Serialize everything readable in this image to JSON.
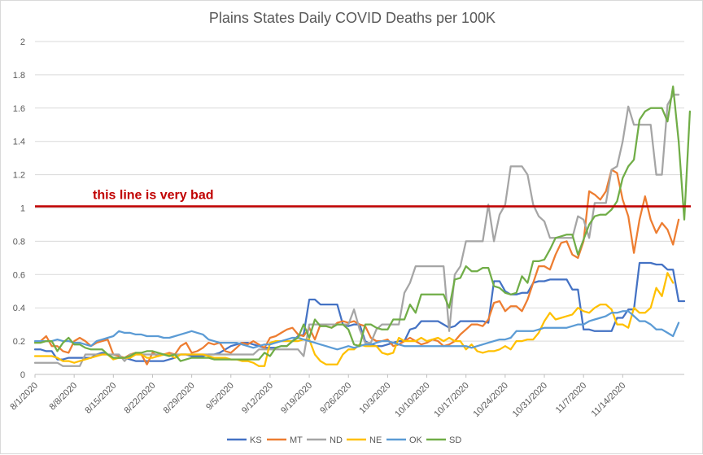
{
  "chart_data": {
    "type": "line",
    "title": "Plains States Daily COVID Deaths per 100K",
    "xlabel": "",
    "ylabel": "",
    "ylim": [
      0,
      2
    ],
    "yticks": [
      "0",
      "0.2",
      "0.4",
      "0.6",
      "0.8",
      "1",
      "1.2",
      "1.4",
      "1.6",
      "1.8",
      "2"
    ],
    "x_start_label": "8/1/2020",
    "xticks": [
      "8/1/2020",
      "8/8/2020",
      "8/15/2020",
      "8/22/2020",
      "8/29/2020",
      "9/5/2020",
      "9/12/2020",
      "9/19/2020",
      "9/26/2020",
      "10/3/2020",
      "10/10/2020",
      "10/17/2020",
      "10/24/2020",
      "10/31/2020",
      "11/7/2020",
      "11/14/2020"
    ],
    "grid": true,
    "legend_position": "bottom",
    "reference_line": {
      "value": 1.01,
      "label": "this line is very bad",
      "color": "#c00000"
    },
    "series": [
      {
        "name": "KS",
        "color": "#4472c4",
        "values": [
          0.15,
          0.15,
          0.14,
          0.14,
          0.09,
          0.09,
          0.1,
          0.1,
          0.1,
          0.1,
          0.1,
          0.12,
          0.13,
          0.12,
          0.1,
          0.1,
          0.1,
          0.09,
          0.08,
          0.08,
          0.08,
          0.08,
          0.08,
          0.08,
          0.09,
          0.1,
          0.12,
          0.12,
          0.11,
          0.11,
          0.11,
          0.12,
          0.12,
          0.13,
          0.15,
          0.17,
          0.18,
          0.19,
          0.19,
          0.18,
          0.17,
          0.16,
          0.16,
          0.16,
          0.17,
          0.17,
          0.2,
          0.23,
          0.24,
          0.45,
          0.45,
          0.42,
          0.42,
          0.42,
          0.42,
          0.3,
          0.29,
          0.3,
          0.3,
          0.2,
          0.18,
          0.17,
          0.17,
          0.18,
          0.19,
          0.2,
          0.2,
          0.27,
          0.28,
          0.32,
          0.32,
          0.32,
          0.32,
          0.3,
          0.28,
          0.29,
          0.32,
          0.32,
          0.32,
          0.32,
          0.32,
          0.31,
          0.56,
          0.56,
          0.5,
          0.48,
          0.48,
          0.49,
          0.49,
          0.55,
          0.56,
          0.56,
          0.57,
          0.57,
          0.57,
          0.57,
          0.51,
          0.51,
          0.27,
          0.27,
          0.26,
          0.26,
          0.26,
          0.26,
          0.34,
          0.34,
          0.39,
          0.39,
          0.67,
          0.67,
          0.67,
          0.66,
          0.66,
          0.63,
          0.63,
          0.44,
          0.44
        ]
      },
      {
        "name": "MT",
        "color": "#ed7d31",
        "values": [
          0.19,
          0.2,
          0.23,
          0.17,
          0.17,
          0.14,
          0.13,
          0.2,
          0.22,
          0.2,
          0.17,
          0.19,
          0.2,
          0.21,
          0.12,
          0.11,
          0.1,
          0.12,
          0.13,
          0.12,
          0.06,
          0.13,
          0.11,
          0.12,
          0.13,
          0.12,
          0.17,
          0.19,
          0.13,
          0.14,
          0.16,
          0.19,
          0.18,
          0.19,
          0.14,
          0.13,
          0.16,
          0.19,
          0.18,
          0.2,
          0.18,
          0.16,
          0.22,
          0.23,
          0.25,
          0.27,
          0.28,
          0.24,
          0.23,
          0.28,
          0.21,
          0.3,
          0.29,
          0.28,
          0.31,
          0.32,
          0.31,
          0.32,
          0.3,
          0.29,
          0.22,
          0.2,
          0.2,
          0.21,
          0.17,
          0.18,
          0.2,
          0.22,
          0.2,
          0.18,
          0.19,
          0.21,
          0.2,
          0.17,
          0.18,
          0.2,
          0.24,
          0.27,
          0.3,
          0.3,
          0.29,
          0.33,
          0.43,
          0.44,
          0.38,
          0.41,
          0.41,
          0.38,
          0.45,
          0.55,
          0.65,
          0.65,
          0.63,
          0.72,
          0.79,
          0.8,
          0.72,
          0.7,
          0.8,
          1.1,
          1.08,
          1.05,
          1.1,
          1.23,
          1.21,
          1.05,
          0.95,
          0.73,
          0.93,
          1.07,
          0.93,
          0.85,
          0.91,
          0.87,
          0.78,
          0.93
        ]
      },
      {
        "name": "ND",
        "color": "#a5a5a5",
        "values": [
          0.07,
          0.07,
          0.07,
          0.07,
          0.07,
          0.05,
          0.05,
          0.05,
          0.05,
          0.12,
          0.12,
          0.12,
          0.12,
          0.12,
          0.12,
          0.12,
          0.08,
          0.12,
          0.12,
          0.12,
          0.12,
          0.12,
          0.12,
          0.12,
          0.12,
          0.12,
          0.12,
          0.12,
          0.12,
          0.12,
          0.12,
          0.12,
          0.12,
          0.12,
          0.12,
          0.12,
          0.12,
          0.12,
          0.12,
          0.12,
          0.15,
          0.15,
          0.15,
          0.15,
          0.15,
          0.15,
          0.15,
          0.15,
          0.11,
          0.3,
          0.3,
          0.3,
          0.3,
          0.3,
          0.3,
          0.3,
          0.3,
          0.39,
          0.27,
          0.19,
          0.19,
          0.27,
          0.3,
          0.3,
          0.3,
          0.3,
          0.49,
          0.55,
          0.65,
          0.65,
          0.65,
          0.65,
          0.65,
          0.65,
          0.26,
          0.6,
          0.65,
          0.8,
          0.8,
          0.8,
          0.8,
          1.02,
          0.8,
          0.96,
          1.02,
          1.25,
          1.25,
          1.25,
          1.2,
          1.02,
          0.95,
          0.92,
          0.82,
          0.82,
          0.82,
          0.82,
          0.82,
          0.95,
          0.93,
          0.82,
          1.03,
          1.03,
          1.03,
          1.23,
          1.25,
          1.4,
          1.61,
          1.5,
          1.5,
          1.5,
          1.5,
          1.2,
          1.2,
          1.62,
          1.68,
          1.68
        ]
      },
      {
        "name": "NE",
        "color": "#ffc000",
        "values": [
          0.11,
          0.11,
          0.11,
          0.11,
          0.1,
          0.08,
          0.08,
          0.07,
          0.08,
          0.09,
          0.1,
          0.11,
          0.12,
          0.12,
          0.09,
          0.1,
          0.1,
          0.1,
          0.12,
          0.12,
          0.1,
          0.1,
          0.11,
          0.12,
          0.12,
          0.1,
          0.12,
          0.12,
          0.12,
          0.12,
          0.12,
          0.11,
          0.1,
          0.1,
          0.1,
          0.09,
          0.09,
          0.08,
          0.08,
          0.07,
          0.05,
          0.05,
          0.19,
          0.2,
          0.2,
          0.2,
          0.2,
          0.2,
          0.21,
          0.21,
          0.12,
          0.08,
          0.06,
          0.06,
          0.06,
          0.12,
          0.15,
          0.15,
          0.18,
          0.17,
          0.17,
          0.17,
          0.13,
          0.12,
          0.13,
          0.22,
          0.2,
          0.2,
          0.2,
          0.22,
          0.2,
          0.21,
          0.22,
          0.2,
          0.22,
          0.2,
          0.2,
          0.15,
          0.18,
          0.14,
          0.13,
          0.14,
          0.14,
          0.15,
          0.17,
          0.15,
          0.2,
          0.2,
          0.21,
          0.21,
          0.25,
          0.32,
          0.37,
          0.33,
          0.34,
          0.35,
          0.36,
          0.4,
          0.38,
          0.37,
          0.4,
          0.42,
          0.42,
          0.39,
          0.3,
          0.3,
          0.28,
          0.4,
          0.37,
          0.37,
          0.4,
          0.52,
          0.47,
          0.61,
          0.55
        ]
      },
      {
        "name": "OK",
        "color": "#5b9bd5",
        "values": [
          0.2,
          0.2,
          0.2,
          0.2,
          0.21,
          0.2,
          0.2,
          0.19,
          0.19,
          0.18,
          0.17,
          0.2,
          0.21,
          0.22,
          0.23,
          0.26,
          0.25,
          0.25,
          0.24,
          0.24,
          0.23,
          0.23,
          0.23,
          0.22,
          0.22,
          0.23,
          0.24,
          0.25,
          0.26,
          0.25,
          0.24,
          0.21,
          0.2,
          0.19,
          0.19,
          0.19,
          0.19,
          0.18,
          0.17,
          0.16,
          0.17,
          0.18,
          0.18,
          0.19,
          0.2,
          0.21,
          0.22,
          0.22,
          0.21,
          0.2,
          0.19,
          0.18,
          0.17,
          0.16,
          0.15,
          0.16,
          0.17,
          0.16,
          0.17,
          0.18,
          0.18,
          0.19,
          0.2,
          0.2,
          0.19,
          0.18,
          0.17,
          0.17,
          0.17,
          0.17,
          0.17,
          0.17,
          0.17,
          0.17,
          0.17,
          0.17,
          0.17,
          0.17,
          0.16,
          0.17,
          0.18,
          0.19,
          0.2,
          0.21,
          0.21,
          0.22,
          0.26,
          0.26,
          0.26,
          0.26,
          0.27,
          0.28,
          0.28,
          0.28,
          0.28,
          0.28,
          0.29,
          0.3,
          0.3,
          0.32,
          0.33,
          0.34,
          0.35,
          0.37,
          0.37,
          0.38,
          0.38,
          0.35,
          0.32,
          0.32,
          0.3,
          0.27,
          0.27,
          0.25,
          0.23,
          0.31
        ]
      },
      {
        "name": "SD",
        "color": "#70ad47",
        "values": [
          0.19,
          0.19,
          0.2,
          0.2,
          0.14,
          0.19,
          0.22,
          0.18,
          0.18,
          0.16,
          0.15,
          0.15,
          0.15,
          0.12,
          0.1,
          0.1,
          0.1,
          0.11,
          0.13,
          0.13,
          0.14,
          0.14,
          0.13,
          0.12,
          0.11,
          0.12,
          0.08,
          0.09,
          0.1,
          0.1,
          0.1,
          0.1,
          0.09,
          0.09,
          0.09,
          0.09,
          0.09,
          0.09,
          0.09,
          0.09,
          0.09,
          0.13,
          0.11,
          0.16,
          0.17,
          0.17,
          0.2,
          0.22,
          0.3,
          0.22,
          0.33,
          0.29,
          0.29,
          0.28,
          0.3,
          0.3,
          0.27,
          0.18,
          0.17,
          0.3,
          0.3,
          0.28,
          0.27,
          0.27,
          0.33,
          0.33,
          0.33,
          0.42,
          0.37,
          0.48,
          0.48,
          0.48,
          0.48,
          0.48,
          0.4,
          0.57,
          0.58,
          0.65,
          0.62,
          0.62,
          0.64,
          0.64,
          0.53,
          0.52,
          0.49,
          0.48,
          0.49,
          0.59,
          0.55,
          0.68,
          0.68,
          0.69,
          0.75,
          0.82,
          0.83,
          0.84,
          0.84,
          0.72,
          0.81,
          0.9,
          0.95,
          0.96,
          0.96,
          0.99,
          1.04,
          1.18,
          1.25,
          1.29,
          1.53,
          1.58,
          1.6,
          1.6,
          1.6,
          1.52,
          1.73,
          1.4,
          0.93,
          1.58
        ]
      }
    ]
  }
}
